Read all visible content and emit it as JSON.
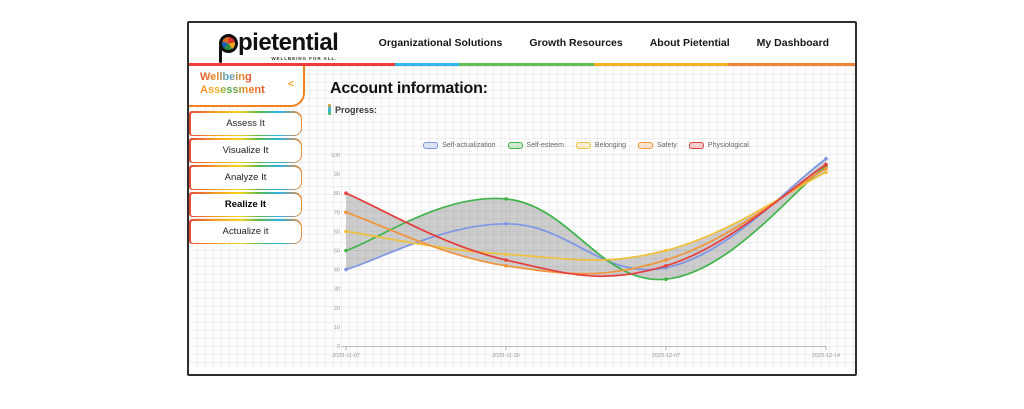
{
  "brand": {
    "name": "pietential",
    "tagline": "WELLBEING FOR ALL.",
    "accent": "#f58220"
  },
  "theme": {
    "divider_colors": [
      "#ee3b3b",
      "#2fb5ea",
      "#63bd57",
      "#f6b11f",
      "#ee8435"
    ],
    "divider_widths": [
      31,
      9.6,
      20.2,
      20.2,
      19
    ]
  },
  "nav": {
    "items": [
      "Organizational Solutions",
      "Growth Resources",
      "About Pietential",
      "My Dashboard"
    ]
  },
  "sidebar": {
    "title_line1": "Wellbeing",
    "title_line2": "Assessment",
    "collapse_icon": "<",
    "items": [
      {
        "label": "Assess It",
        "active": false
      },
      {
        "label": "Visualize It",
        "active": false
      },
      {
        "label": "Analyze It",
        "active": false
      },
      {
        "label": "Realize It",
        "active": true
      },
      {
        "label": "Actualize it",
        "active": false
      }
    ]
  },
  "main": {
    "heading": "Account information:",
    "progress_label": "Progress:"
  },
  "chart_data": {
    "type": "line",
    "x": [
      "2023-11-07",
      "2023-11-30",
      "2023-12-07",
      "2023-12-14"
    ],
    "series": [
      {
        "name": "Self-actualization",
        "color": "#7d95e6",
        "values": [
          40,
          64,
          41,
          98
        ]
      },
      {
        "name": "Self-esteem",
        "color": "#3eb449",
        "values": [
          50,
          77,
          35,
          94
        ]
      },
      {
        "name": "Belonging",
        "color": "#f0c13a",
        "values": [
          60,
          48,
          50,
          91
        ]
      },
      {
        "name": "Safety",
        "color": "#f2953a",
        "values": [
          70,
          42,
          45,
          93
        ]
      },
      {
        "name": "Physiological",
        "color": "#e63e3e",
        "values": [
          80,
          45,
          42,
          95
        ]
      }
    ],
    "ylim": [
      0,
      100
    ],
    "ytick_step": 10,
    "fill": "gray envelope between min and max series",
    "fill_color": "rgba(115,115,115,0.35)",
    "legend_position": "top",
    "grid": true
  }
}
